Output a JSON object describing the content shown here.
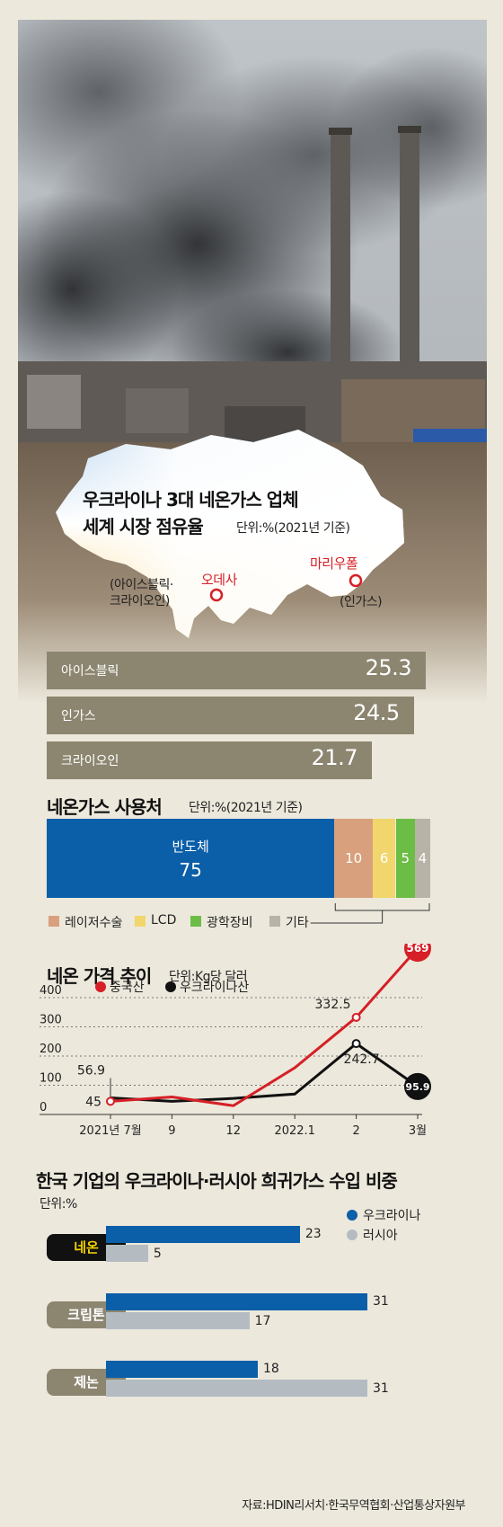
{
  "map": {
    "title_line1": "우크라이나 3대 네온가스 업체",
    "title_line2": "세계 시장 점유율",
    "unit": "단위:%(2021년 기준)",
    "odesa": "오데사",
    "odesa_note1": "(아이스블릭·",
    "odesa_note2": "크라이오인)",
    "mariupol": "마리우폴",
    "mariupol_note": "(인가스)"
  },
  "market_share": {
    "items": [
      {
        "name": "아이스블릭",
        "value": 25.3,
        "label": "25.3"
      },
      {
        "name": "인가스",
        "value": 24.5,
        "label": "24.5"
      },
      {
        "name": "크라이오인",
        "value": 21.7,
        "label": "21.7"
      }
    ]
  },
  "usage": {
    "title": "네온가스 사용처",
    "unit": "단위:%(2021년 기준)",
    "segments": [
      {
        "name": "반도체",
        "value": 75,
        "label": "75",
        "color": "#0b5ea8"
      },
      {
        "name": "레이저수술",
        "value": 10,
        "label": "10",
        "color": "#d8a07c"
      },
      {
        "name": "LCD",
        "value": 6,
        "label": "6",
        "color": "#f0d66d"
      },
      {
        "name": "광학장비",
        "value": 5,
        "label": "5",
        "color": "#6cbd45"
      },
      {
        "name": "기타",
        "value": 4,
        "label": "4",
        "color": "#b7b3a6"
      }
    ]
  },
  "price": {
    "title": "네온 가격 추이",
    "unit": "단위:Kg당 달러",
    "legend_china": "중국산",
    "legend_ukraine": "우크라이나산",
    "china_color": "#d61f26",
    "ukraine_color": "#111111"
  },
  "imports": {
    "title": "한국 기업의 우크라이나·러시아  희귀가스 수입 비중",
    "unit": "단위:%",
    "legend_ukraine": "우크라이나",
    "legend_russia": "러시아",
    "ukraine_color": "#0b5ea8",
    "russia_color": "#b4bcc2",
    "items": [
      {
        "name": "네온",
        "ukraine": 23,
        "russia": 5
      },
      {
        "name": "크립톤",
        "ukraine": 31,
        "russia": 17
      },
      {
        "name": "제논",
        "ukraine": 18,
        "russia": 31
      }
    ]
  },
  "chart_data": [
    {
      "type": "bar",
      "title": "우크라이나 3대 네온가스 업체 세계 시장 점유율",
      "unit": "단위:%(2021년 기준)",
      "categories": [
        "아이스블릭",
        "인가스",
        "크라이오인"
      ],
      "values": [
        25.3,
        24.5,
        21.7
      ]
    },
    {
      "type": "bar",
      "title": "네온가스 사용처",
      "unit": "단위:%(2021년 기준)",
      "categories": [
        "반도체",
        "레이저수술",
        "LCD",
        "광학장비",
        "기타"
      ],
      "values": [
        75,
        10,
        6,
        5,
        4
      ]
    },
    {
      "type": "line",
      "title": "네온 가격 추이",
      "unit": "단위:Kg당 달러",
      "x": [
        "2021년 7월",
        "9",
        "12",
        "2022.1",
        "2",
        "3월"
      ],
      "yticks": [
        0,
        100,
        200,
        300,
        400
      ],
      "ylim": [
        0,
        400
      ],
      "grid": true,
      "legend": "top-left",
      "series": [
        {
          "name": "중국산",
          "values": [
            45,
            60,
            30,
            160,
            332.5,
            569
          ],
          "labels": [
            "45",
            "",
            "",
            "",
            "332.5",
            "569"
          ]
        },
        {
          "name": "우크라이나산",
          "values": [
            56.9,
            45,
            55,
            70,
            242.7,
            95.9
          ],
          "labels": [
            "56.9",
            "",
            "",
            "",
            "242.7",
            "95.9"
          ]
        }
      ]
    },
    {
      "type": "bar",
      "title": "한국 기업의 우크라이나·러시아  희귀가스 수입 비중",
      "unit": "단위:%",
      "categories": [
        "네온",
        "크립톤",
        "제논"
      ],
      "series": [
        {
          "name": "우크라이나",
          "values": [
            23,
            31,
            18
          ]
        },
        {
          "name": "러시아",
          "values": [
            5,
            17,
            31
          ]
        }
      ]
    }
  ],
  "source": "자료:HDIN리서치·한국무역협회·산업통상자원부"
}
